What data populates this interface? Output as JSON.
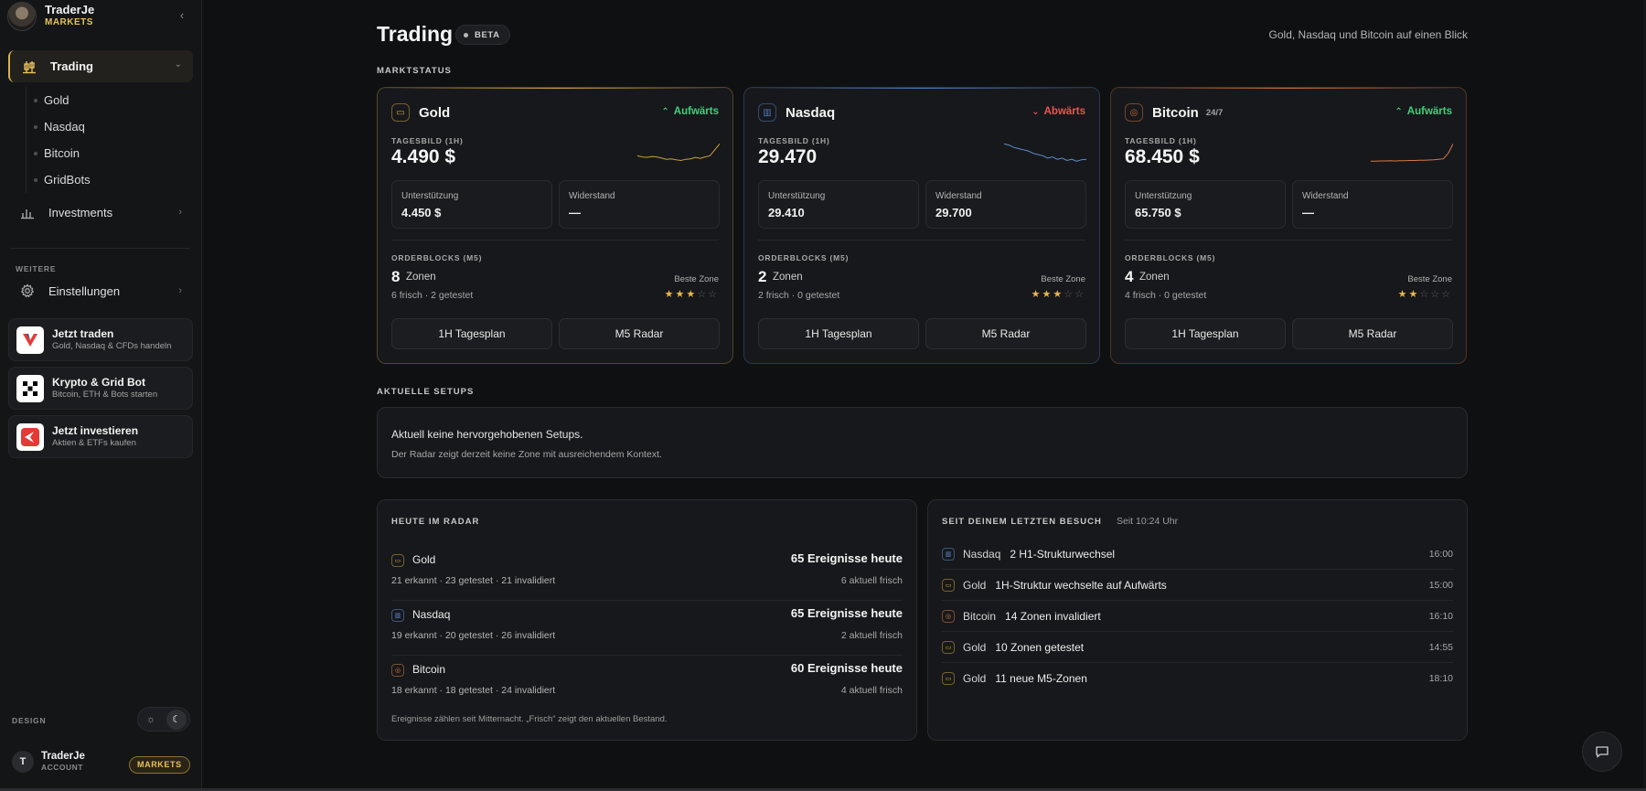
{
  "app": {
    "name": "TraderJe",
    "sub": "MARKETS"
  },
  "sidebar": {
    "active_item": "Trading",
    "sub_items": [
      "Gold",
      "Nasdaq",
      "Bitcoin",
      "GridBots"
    ],
    "investments": "Investments",
    "section_label": "WEITERE",
    "settings": "Einstellungen",
    "promos": [
      {
        "title": "Jetzt traden",
        "sub": "Gold, Nasdaq & CFDs handeln"
      },
      {
        "title": "Krypto & Grid Bot",
        "sub": "Bitcoin, ETH & Bots starten"
      },
      {
        "title": "Jetzt investieren",
        "sub": "Aktien & ETFs kaufen"
      }
    ],
    "design_label": "DESIGN",
    "account": {
      "initial": "T",
      "name": "TraderJe",
      "sub": "ACCOUNT",
      "badge": "MARKETS"
    }
  },
  "header": {
    "title": "Trading",
    "badge": "BETA",
    "tagline": "Gold, Nasdaq und Bitcoin auf einen Blick"
  },
  "sections": {
    "market_status": "MARKTSTATUS",
    "setups": "AKTUELLE SETUPS"
  },
  "cards": [
    {
      "name": "Gold",
      "extra": "",
      "trend": "Aufwärts",
      "trend_dir": "up",
      "accent": "#c9a23c",
      "tag": "TAGESBILD (1H)",
      "price": "4.490 $",
      "support_label": "Unterstützung",
      "support": "4.450 $",
      "resistance_label": "Widerstand",
      "resistance": "—",
      "ob_label": "ORDERBLOCKS (M5)",
      "ob_count": "8",
      "ob_unit": "Zonen",
      "ob_sub": "6 frisch · 2 getestet",
      "best_zone_label": "Beste Zone",
      "rating": 3,
      "btn1": "1H Tagesplan",
      "btn2": "M5 Radar",
      "spark_color": "#c9a23c",
      "spark": [
        0.55,
        0.6,
        0.62,
        0.58,
        0.6,
        0.65,
        0.7,
        0.68,
        0.72,
        0.75,
        0.7,
        0.68,
        0.62,
        0.66,
        0.6,
        0.55,
        0.3,
        0.05
      ]
    },
    {
      "name": "Nasdaq",
      "extra": "",
      "trend": "Abwärts",
      "trend_dir": "down",
      "accent": "#4d78b8",
      "tag": "TAGESBILD (1H)",
      "price": "29.470",
      "support_label": "Unterstützung",
      "support": "29.410",
      "resistance_label": "Widerstand",
      "resistance": "29.700",
      "ob_label": "ORDERBLOCKS (M5)",
      "ob_count": "2",
      "ob_unit": "Zonen",
      "ob_sub": "2 frisch · 0 getestet",
      "best_zone_label": "Beste Zone",
      "rating": 3,
      "btn1": "1H Tagesplan",
      "btn2": "M5 Radar",
      "spark_color": "#5f8fd0",
      "spark": [
        0.05,
        0.1,
        0.2,
        0.25,
        0.3,
        0.35,
        0.45,
        0.5,
        0.55,
        0.65,
        0.6,
        0.7,
        0.65,
        0.75,
        0.7,
        0.78,
        0.72,
        0.7
      ]
    },
    {
      "name": "Bitcoin",
      "extra": "24/7",
      "trend": "Aufwärts",
      "trend_dir": "up",
      "accent": "#c46d3a",
      "tag": "TAGESBILD (1H)",
      "price": "68.450 $",
      "support_label": "Unterstützung",
      "support": "65.750 $",
      "resistance_label": "Widerstand",
      "resistance": "—",
      "ob_label": "ORDERBLOCKS (M5)",
      "ob_count": "4",
      "ob_unit": "Zonen",
      "ob_sub": "4 frisch · 0 getestet",
      "best_zone_label": "Beste Zone",
      "rating": 2,
      "btn1": "1H Tagesplan",
      "btn2": "M5 Radar",
      "spark_color": "#d47a45",
      "spark": [
        0.78,
        0.78,
        0.77,
        0.77,
        0.76,
        0.77,
        0.76,
        0.76,
        0.75,
        0.75,
        0.74,
        0.74,
        0.73,
        0.72,
        0.7,
        0.68,
        0.45,
        0.05
      ]
    }
  ],
  "setups": {
    "line1": "Aktuell keine hervorgehobenen Setups.",
    "line2": "Der Radar zeigt derzeit keine Zone mit ausreichendem Kontext."
  },
  "radar": {
    "title": "HEUTE IM RADAR",
    "rows": [
      {
        "name": "Gold",
        "stats": "21 erkannt · 23 getestet · 21 invalidiert",
        "events": "65 Ereignisse heute",
        "fresh": "6 aktuell frisch",
        "color": "#c9a23c"
      },
      {
        "name": "Nasdaq",
        "stats": "19 erkannt · 20 getestet · 26 invalidiert",
        "events": "65 Ereignisse heute",
        "fresh": "2 aktuell frisch",
        "color": "#5f8fd0"
      },
      {
        "name": "Bitcoin",
        "stats": "18 erkannt · 18 getestet · 24 invalidiert",
        "events": "60 Ereignisse heute",
        "fresh": "4 aktuell frisch",
        "color": "#d47a45"
      }
    ],
    "note": "Ereignisse zählen seit Mitternacht. „Frisch“ zeigt den aktuellen Bestand."
  },
  "since": {
    "title": "SEIT DEINEM LETZTEN BESUCH",
    "extra": "Seit 10:24 Uhr",
    "rows": [
      {
        "asset": "Nasdaq",
        "text": "2 H1-Strukturwechsel",
        "time": "16:00",
        "color": "#5f8fd0"
      },
      {
        "asset": "Gold",
        "text": "1H-Struktur wechselte auf Aufwärts",
        "time": "15:00",
        "color": "#c9a23c"
      },
      {
        "asset": "Bitcoin",
        "text": "14 Zonen invalidiert",
        "time": "16:10",
        "color": "#d47a45"
      },
      {
        "asset": "Gold",
        "text": "10 Zonen getestet",
        "time": "14:55",
        "color": "#c9a23c"
      },
      {
        "asset": "Gold",
        "text": "11 neue M5-Zonen",
        "time": "18:10",
        "color": "#c9a23c"
      }
    ]
  }
}
